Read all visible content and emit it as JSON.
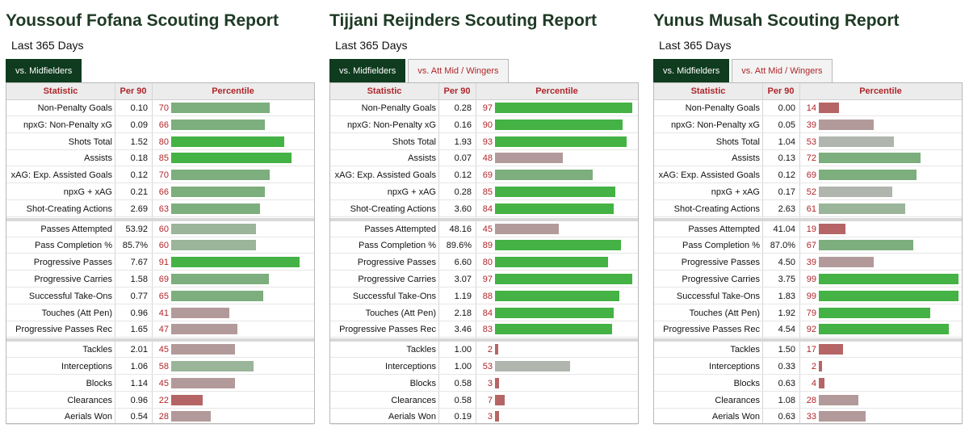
{
  "colors": {
    "title": "#1e3a24",
    "tab_active_bg": "#0f3b1e",
    "accent_red": "#b0262a",
    "bar_high": "#44b244",
    "bar_mid_high": "#7dae7d",
    "bar_mid": "#9ab59a",
    "bar_neutral": "#b0b5ae",
    "bar_low_mid": "#b39a9a",
    "bar_low": "#b56565"
  },
  "columns": {
    "statistic": "Statistic",
    "per90": "Per 90",
    "percentile": "Percentile"
  },
  "reports": [
    {
      "title": "Youssouf Fofana Scouting Report",
      "period": "Last 365 Days",
      "tabs": [
        {
          "label": "vs. Midfielders",
          "active": true
        }
      ],
      "groups": [
        [
          {
            "stat": "Non-Penalty Goals",
            "per90": "0.10",
            "pct": 70
          },
          {
            "stat": "npxG: Non-Penalty xG",
            "per90": "0.09",
            "pct": 66
          },
          {
            "stat": "Shots Total",
            "per90": "1.52",
            "pct": 80
          },
          {
            "stat": "Assists",
            "per90": "0.18",
            "pct": 85
          },
          {
            "stat": "xAG: Exp. Assisted Goals",
            "per90": "0.12",
            "pct": 70
          },
          {
            "stat": "npxG + xAG",
            "per90": "0.21",
            "pct": 66
          },
          {
            "stat": "Shot-Creating Actions",
            "per90": "2.69",
            "pct": 63
          }
        ],
        [
          {
            "stat": "Passes Attempted",
            "per90": "53.92",
            "pct": 60
          },
          {
            "stat": "Pass Completion %",
            "per90": "85.7%",
            "pct": 60
          },
          {
            "stat": "Progressive Passes",
            "per90": "7.67",
            "pct": 91
          },
          {
            "stat": "Progressive Carries",
            "per90": "1.58",
            "pct": 69
          },
          {
            "stat": "Successful Take-Ons",
            "per90": "0.77",
            "pct": 65
          },
          {
            "stat": "Touches (Att Pen)",
            "per90": "0.96",
            "pct": 41
          },
          {
            "stat": "Progressive Passes Rec",
            "per90": "1.65",
            "pct": 47
          }
        ],
        [
          {
            "stat": "Tackles",
            "per90": "2.01",
            "pct": 45
          },
          {
            "stat": "Interceptions",
            "per90": "1.06",
            "pct": 58
          },
          {
            "stat": "Blocks",
            "per90": "1.14",
            "pct": 45
          },
          {
            "stat": "Clearances",
            "per90": "0.96",
            "pct": 22
          },
          {
            "stat": "Aerials Won",
            "per90": "0.54",
            "pct": 28
          }
        ]
      ]
    },
    {
      "title": "Tijjani Reijnders Scouting Report",
      "period": "Last 365 Days",
      "tabs": [
        {
          "label": "vs. Midfielders",
          "active": true
        },
        {
          "label": "vs. Att Mid / Wingers",
          "active": false
        }
      ],
      "groups": [
        [
          {
            "stat": "Non-Penalty Goals",
            "per90": "0.28",
            "pct": 97
          },
          {
            "stat": "npxG: Non-Penalty xG",
            "per90": "0.16",
            "pct": 90
          },
          {
            "stat": "Shots Total",
            "per90": "1.93",
            "pct": 93
          },
          {
            "stat": "Assists",
            "per90": "0.07",
            "pct": 48
          },
          {
            "stat": "xAG: Exp. Assisted Goals",
            "per90": "0.12",
            "pct": 69
          },
          {
            "stat": "npxG + xAG",
            "per90": "0.28",
            "pct": 85
          },
          {
            "stat": "Shot-Creating Actions",
            "per90": "3.60",
            "pct": 84
          }
        ],
        [
          {
            "stat": "Passes Attempted",
            "per90": "48.16",
            "pct": 45
          },
          {
            "stat": "Pass Completion %",
            "per90": "89.6%",
            "pct": 89
          },
          {
            "stat": "Progressive Passes",
            "per90": "6.60",
            "pct": 80
          },
          {
            "stat": "Progressive Carries",
            "per90": "3.07",
            "pct": 97
          },
          {
            "stat": "Successful Take-Ons",
            "per90": "1.19",
            "pct": 88
          },
          {
            "stat": "Touches (Att Pen)",
            "per90": "2.18",
            "pct": 84
          },
          {
            "stat": "Progressive Passes Rec",
            "per90": "3.46",
            "pct": 83
          }
        ],
        [
          {
            "stat": "Tackles",
            "per90": "1.00",
            "pct": 2
          },
          {
            "stat": "Interceptions",
            "per90": "1.00",
            "pct": 53
          },
          {
            "stat": "Blocks",
            "per90": "0.58",
            "pct": 3
          },
          {
            "stat": "Clearances",
            "per90": "0.58",
            "pct": 7
          },
          {
            "stat": "Aerials Won",
            "per90": "0.19",
            "pct": 3
          }
        ]
      ]
    },
    {
      "title": "Yunus Musah Scouting Report",
      "period": "Last 365 Days",
      "tabs": [
        {
          "label": "vs. Midfielders",
          "active": true
        },
        {
          "label": "vs. Att Mid / Wingers",
          "active": false
        }
      ],
      "groups": [
        [
          {
            "stat": "Non-Penalty Goals",
            "per90": "0.00",
            "pct": 14
          },
          {
            "stat": "npxG: Non-Penalty xG",
            "per90": "0.05",
            "pct": 39
          },
          {
            "stat": "Shots Total",
            "per90": "1.04",
            "pct": 53
          },
          {
            "stat": "Assists",
            "per90": "0.13",
            "pct": 72
          },
          {
            "stat": "xAG: Exp. Assisted Goals",
            "per90": "0.12",
            "pct": 69
          },
          {
            "stat": "npxG + xAG",
            "per90": "0.17",
            "pct": 52
          },
          {
            "stat": "Shot-Creating Actions",
            "per90": "2.63",
            "pct": 61
          }
        ],
        [
          {
            "stat": "Passes Attempted",
            "per90": "41.04",
            "pct": 19
          },
          {
            "stat": "Pass Completion %",
            "per90": "87.0%",
            "pct": 67
          },
          {
            "stat": "Progressive Passes",
            "per90": "4.50",
            "pct": 39
          },
          {
            "stat": "Progressive Carries",
            "per90": "3.75",
            "pct": 99
          },
          {
            "stat": "Successful Take-Ons",
            "per90": "1.83",
            "pct": 99
          },
          {
            "stat": "Touches (Att Pen)",
            "per90": "1.92",
            "pct": 79
          },
          {
            "stat": "Progressive Passes Rec",
            "per90": "4.54",
            "pct": 92
          }
        ],
        [
          {
            "stat": "Tackles",
            "per90": "1.50",
            "pct": 17
          },
          {
            "stat": "Interceptions",
            "per90": "0.33",
            "pct": 2
          },
          {
            "stat": "Blocks",
            "per90": "0.63",
            "pct": 4
          },
          {
            "stat": "Clearances",
            "per90": "1.08",
            "pct": 28
          },
          {
            "stat": "Aerials Won",
            "per90": "0.63",
            "pct": 33
          }
        ]
      ]
    }
  ]
}
